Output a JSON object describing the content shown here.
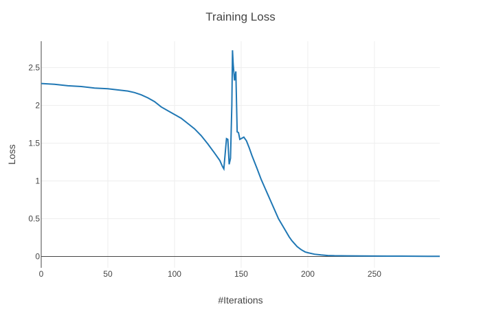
{
  "chart_data": {
    "type": "line",
    "title": "Training Loss",
    "xlabel": "#Iterations",
    "ylabel": "Loss",
    "xlim": [
      0,
      299
    ],
    "ylim": [
      -0.15,
      2.85
    ],
    "x_ticks": [
      0,
      50,
      100,
      150,
      200,
      250
    ],
    "y_ticks": [
      0,
      0.5,
      1,
      1.5,
      2,
      2.5
    ],
    "x_tick_labels": [
      "0",
      "50",
      "100",
      "150",
      "200",
      "250"
    ],
    "y_tick_labels": [
      "0",
      "0.5",
      "1",
      "1.5",
      "2",
      "2.5"
    ],
    "grid": true,
    "line_color": "#1f77b4",
    "series": [
      {
        "x": [
          0,
          10,
          20,
          30,
          40,
          50,
          55,
          60,
          65,
          70,
          75,
          80,
          85,
          90,
          95,
          100,
          105,
          110,
          115,
          120,
          125,
          130,
          134,
          136,
          137,
          139,
          140,
          141,
          142,
          143,
          143.5,
          144,
          145,
          146,
          147,
          148,
          149,
          150,
          152,
          154,
          156,
          158,
          160,
          162,
          165,
          168,
          170,
          172,
          175,
          178,
          180,
          183,
          186,
          188,
          190,
          192,
          195,
          198,
          200,
          205,
          210,
          215,
          220,
          230,
          240,
          250,
          260,
          270,
          280,
          290,
          299
        ],
        "y": [
          2.29,
          2.28,
          2.26,
          2.25,
          2.23,
          2.22,
          2.21,
          2.2,
          2.19,
          2.17,
          2.14,
          2.1,
          2.05,
          1.98,
          1.93,
          1.88,
          1.83,
          1.76,
          1.69,
          1.6,
          1.49,
          1.37,
          1.27,
          1.19,
          1.16,
          1.56,
          1.55,
          1.22,
          1.3,
          2.0,
          2.73,
          2.55,
          2.33,
          2.45,
          1.65,
          1.64,
          1.55,
          1.56,
          1.58,
          1.53,
          1.44,
          1.34,
          1.25,
          1.16,
          1.02,
          0.9,
          0.82,
          0.74,
          0.62,
          0.5,
          0.44,
          0.35,
          0.26,
          0.21,
          0.17,
          0.13,
          0.09,
          0.06,
          0.05,
          0.03,
          0.02,
          0.013,
          0.01,
          0.008,
          0.007,
          0.006,
          0.005,
          0.004,
          0.003,
          0.002,
          0.002
        ]
      }
    ]
  }
}
